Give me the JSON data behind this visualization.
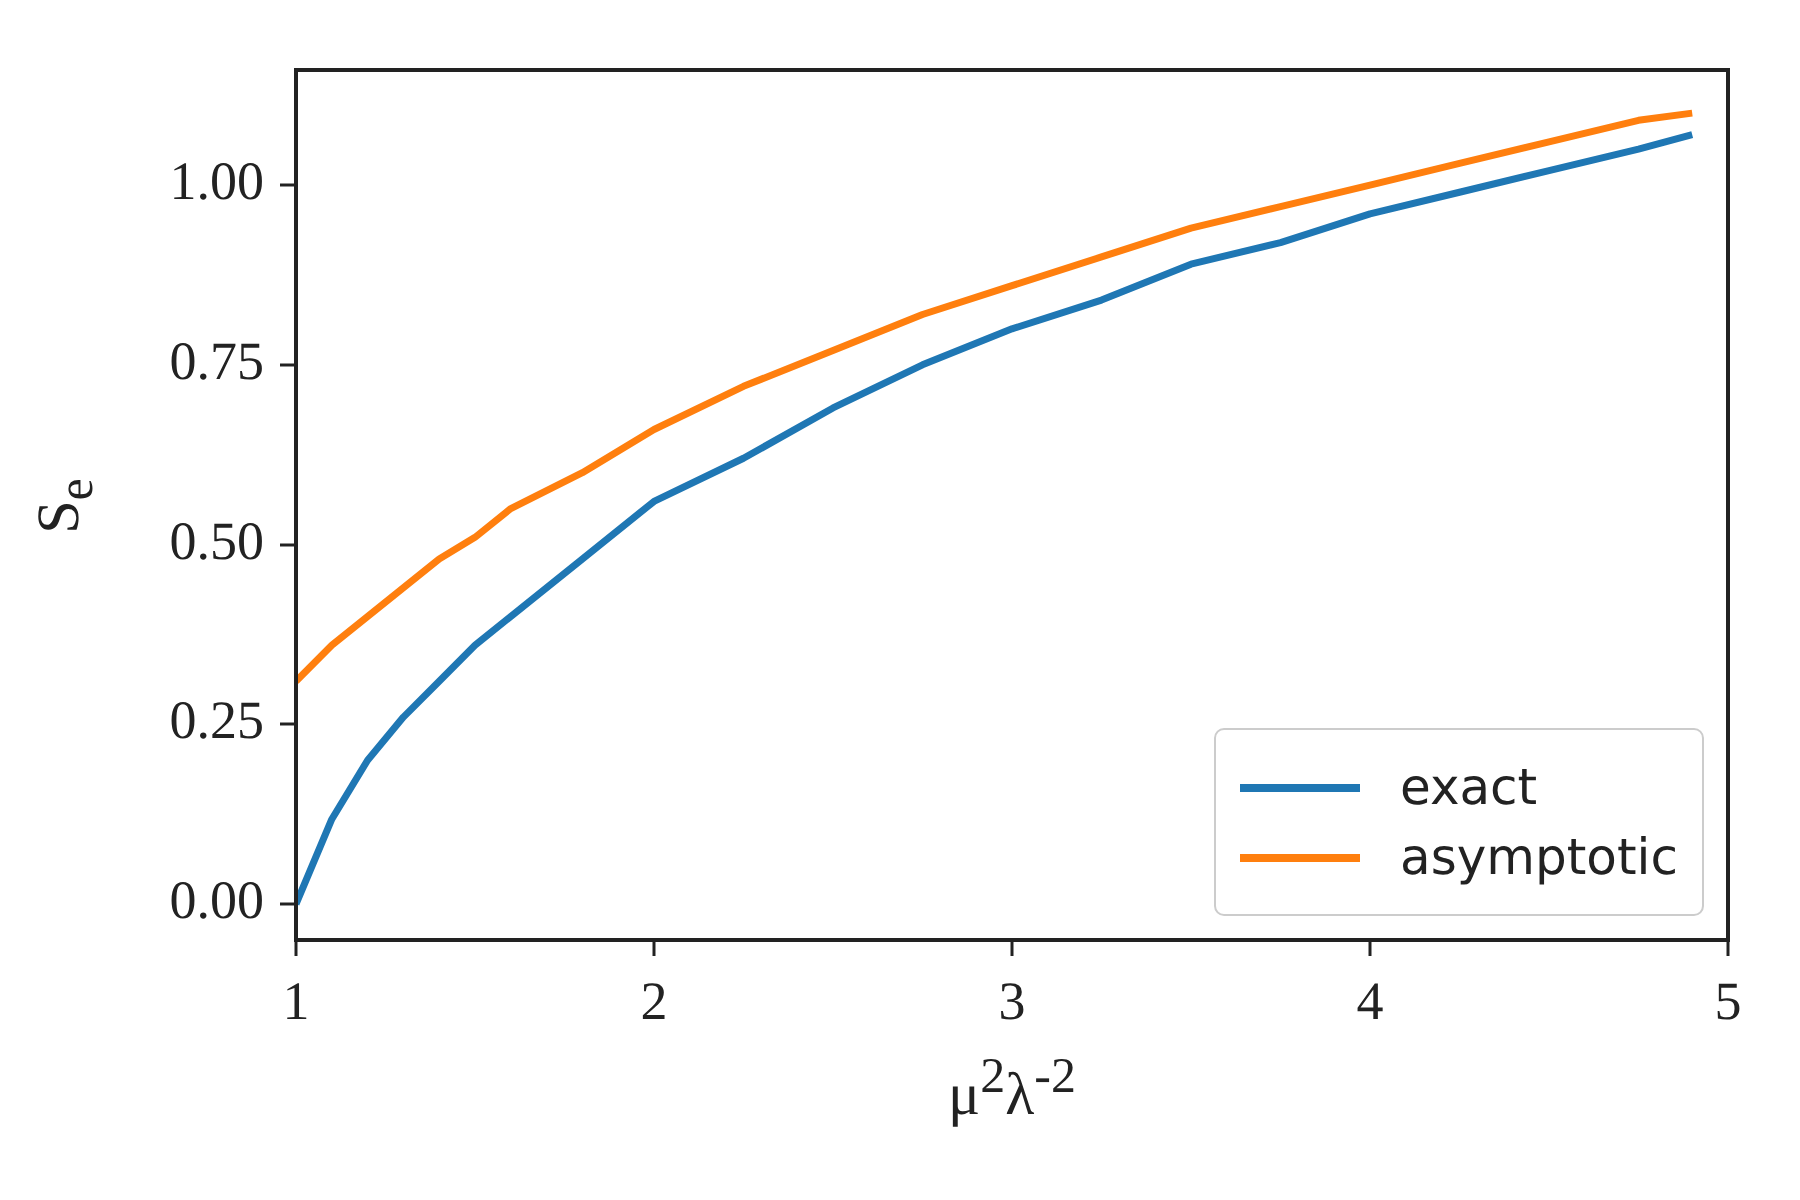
{
  "chart_data": {
    "type": "line",
    "xlabel": "μ$^{2}$λ$^{-2}$",
    "ylabel": "S$_{e}$",
    "xlim": [
      1,
      5
    ],
    "ylim": [
      -0.05,
      1.16
    ],
    "xticks": [
      1,
      2,
      3,
      4,
      5
    ],
    "yticks": [
      {
        "value": 0,
        "label": "0.00"
      },
      {
        "value": 0.25,
        "label": "0.25"
      },
      {
        "value": 0.5,
        "label": "0.50"
      },
      {
        "value": 0.75,
        "label": "0.75"
      },
      {
        "value": 1,
        "label": "1.00"
      }
    ],
    "grid": false,
    "legend": "bottom right",
    "marker": "none",
    "line_style": "solid",
    "x": [
      1,
      1.1,
      1.2,
      1.3,
      1.4,
      1.5,
      1.6,
      1.8,
      2,
      2.25,
      2.5,
      2.75,
      3,
      3.25,
      3.5,
      3.75,
      4,
      4.25,
      4.5,
      4.75,
      4.9
    ],
    "series": [
      {
        "name": "exact",
        "color": "#1f77b4",
        "values": [
          0,
          0.118,
          0.2,
          0.26,
          0.31,
          0.36,
          0.4,
          0.48,
          0.56,
          0.62,
          0.69,
          0.75,
          0.8,
          0.84,
          0.89,
          0.92,
          0.96,
          0.99,
          1.02,
          1.05,
          1.07
        ]
      },
      {
        "name": "asymptotic",
        "color": "#ff7f0e",
        "values": [
          0.31,
          0.36,
          0.4,
          0.44,
          0.48,
          0.51,
          0.55,
          0.6,
          0.66,
          0.72,
          0.77,
          0.82,
          0.86,
          0.9,
          0.94,
          0.97,
          1.0,
          1.03,
          1.06,
          1.09,
          1.1
        ]
      }
    ]
  }
}
